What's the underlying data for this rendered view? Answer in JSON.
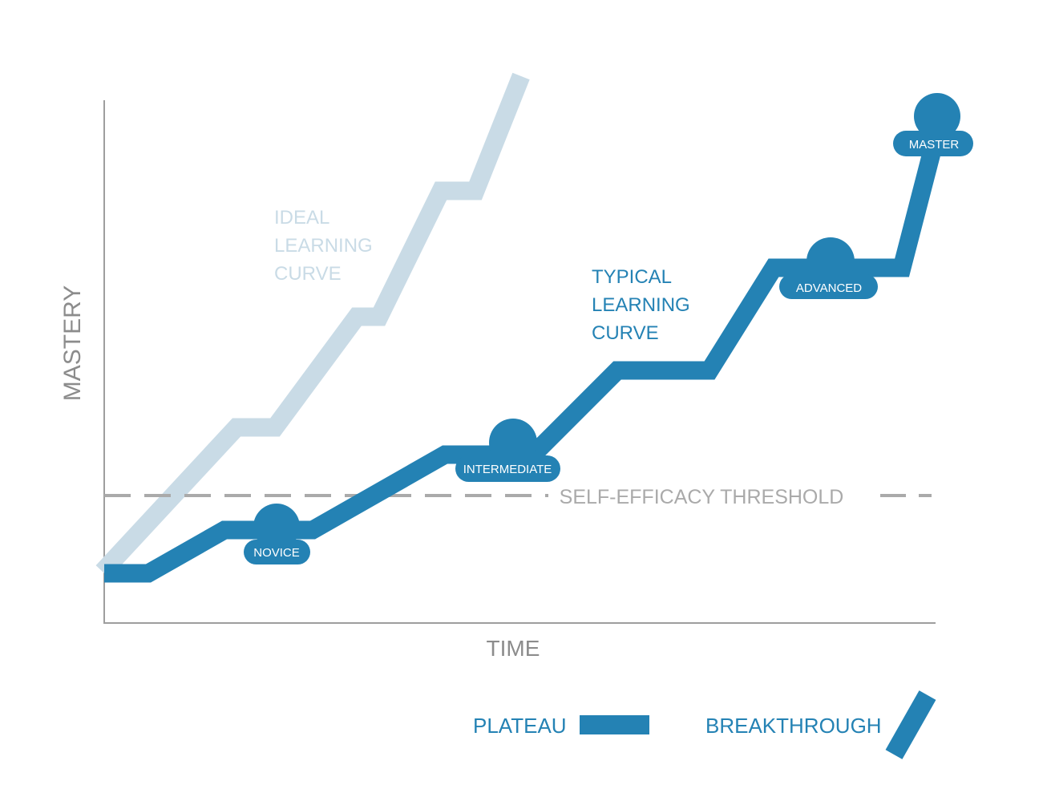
{
  "axes": {
    "y_label": "MASTERY",
    "x_label": "TIME"
  },
  "curves": {
    "ideal": {
      "label_lines": [
        "IDEAL",
        "LEARNING",
        "CURVE"
      ]
    },
    "typical": {
      "label_lines": [
        "TYPICAL",
        "LEARNING",
        "CURVE"
      ]
    }
  },
  "threshold": {
    "label": "SELF-EFFICACY THRESHOLD"
  },
  "stages": {
    "novice": "NOVICE",
    "intermediate": "INTERMEDIATE",
    "advanced": "ADVANCED",
    "master": "MASTER"
  },
  "legend": {
    "plateau": "PLATEAU",
    "breakthrough": "BREAKTHROUGH"
  },
  "colors": {
    "typical": "#2482b4",
    "ideal": "#c9dbe6",
    "axis": "#9e9e9e",
    "threshold": "#aaaaaa",
    "axis_text": "#8c8c8c",
    "badge_text": "#ffffff"
  }
}
